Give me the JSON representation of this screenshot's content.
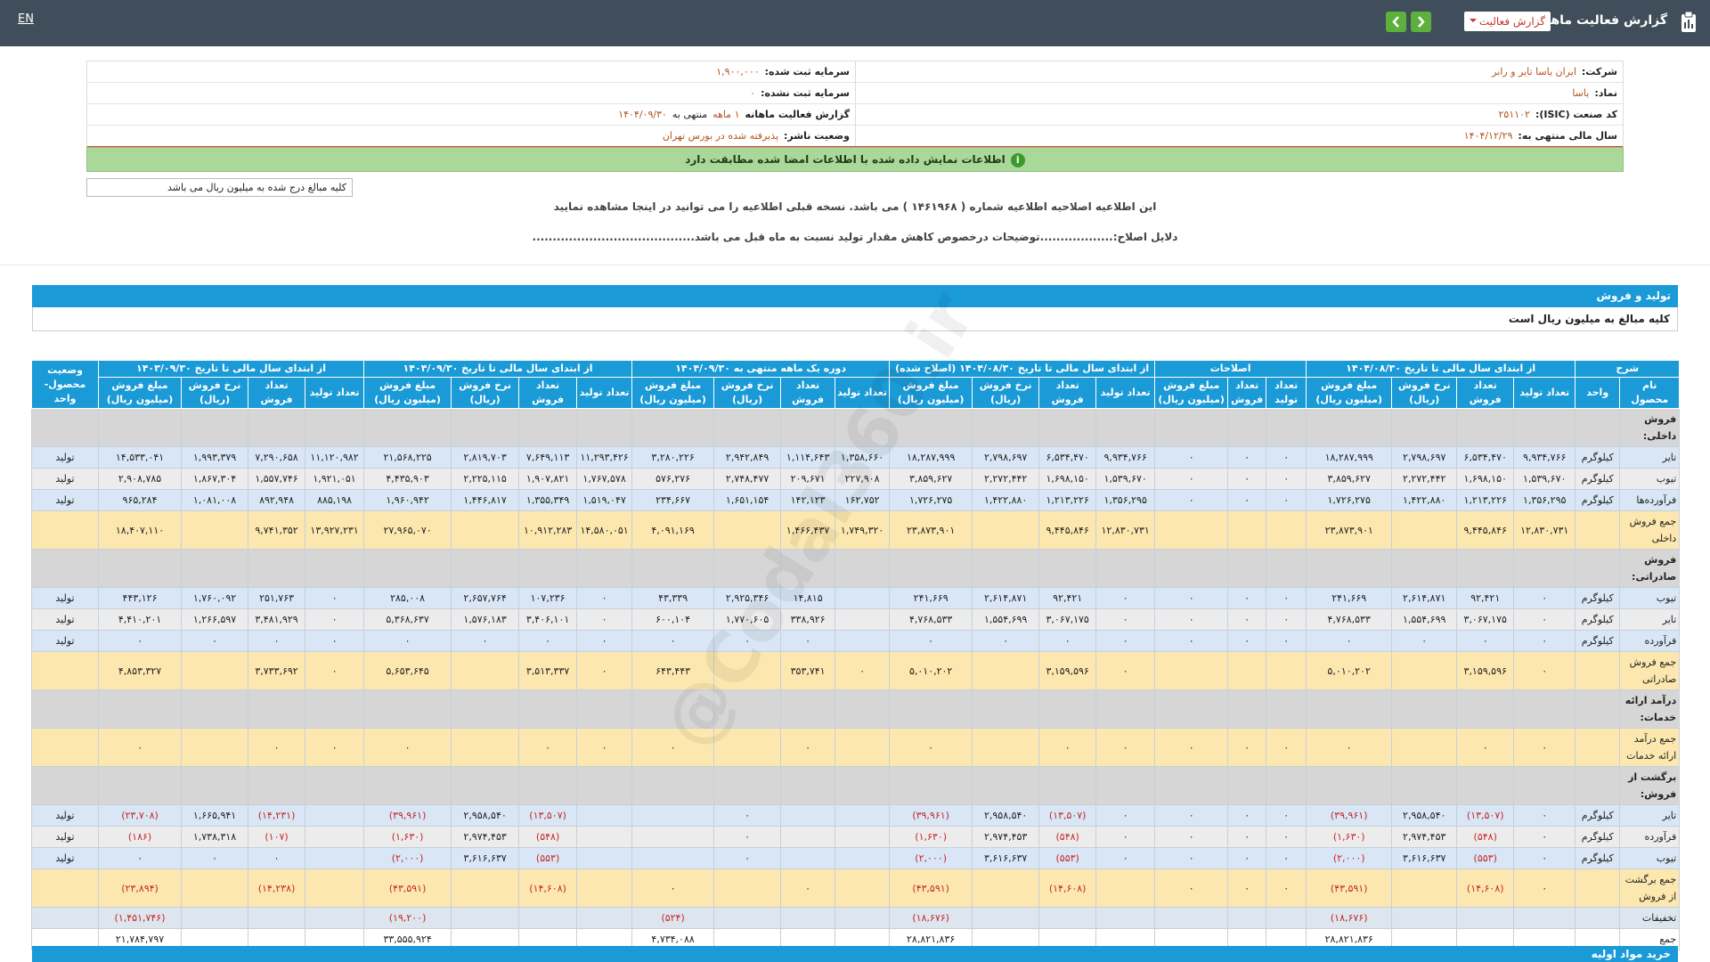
{
  "header": {
    "title": "گزارش فعالیت ماهانه",
    "dropdown": "گزارش فعالیت",
    "language": "EN"
  },
  "info": {
    "right": [
      {
        "label": "شرکت:",
        "value": "ایران یاسا تایر و رابر"
      },
      {
        "label": "نماد:",
        "value": "یاسا"
      },
      {
        "label": "کد صنعت (ISIC):",
        "value": "۲۵۱۱۰۲"
      },
      {
        "label": "سال مالی منتهی به:",
        "value": "۱۴۰۴/۱۲/۲۹"
      }
    ],
    "left": [
      {
        "label": "سرمایه ثبت شده:",
        "value": "۱,۹۰۰,۰۰۰"
      },
      {
        "label": "سرمایه ثبت نشده:",
        "value": "۰"
      },
      {
        "label": "گزارش فعالیت ماهانه",
        "value": [
          "۱ ماهه",
          "منتهی به",
          "۱۴۰۴/۰۹/۳۰"
        ]
      },
      {
        "label": "وضعیت ناشر:",
        "value": "پذیرفته شده در بورس تهران"
      }
    ]
  },
  "verification": "اطلاعات نمایش داده شده با اطلاعات امضا شده مطابقت دارد",
  "amounts_note": "کلیه مبالغ درج شده به میلیون ریال می باشد",
  "notice": "این اطلاعیه اصلاحیه اطلاعیه شماره ( ۱۴۶۱۹۶۸ ) می باشد. نسخه قبلی اطلاعیه را می توانید در اینجا مشاهده نمایید",
  "correction_reason": "دلایل اصلاح:..................توضیحات درخصوص کاهش مقدار تولید نسبت به ماه قبل می باشد........................................",
  "section": {
    "title": "تولید و فروش",
    "note": "کلیه مبالغ به میلیون ریال است"
  },
  "table": {
    "groups": [
      {
        "title": "شرح",
        "columns": [
          "نام محصول",
          "واحد"
        ]
      },
      {
        "title": "از ابتدای سال مالی تا تاریخ ۱۴۰۴/۰۸/۳۰",
        "columns": [
          "تعداد تولید",
          "تعداد فروش",
          "نرخ فروش (ریال)",
          "مبلغ فروش (میلیون ریال)"
        ]
      },
      {
        "title": "اصلاحات",
        "columns": [
          "تعداد تولید",
          "تعداد فروش",
          "مبلغ فروش (میلیون ریال)"
        ]
      },
      {
        "title": "از ابتدای سال مالی تا تاریخ ۱۴۰۴/۰۸/۳۰ (اصلاح شده)",
        "columns": [
          "تعداد تولید",
          "تعداد فروش",
          "نرخ فروش (ریال)",
          "مبلغ فروش (میلیون ریال)"
        ]
      },
      {
        "title": "دوره یک ماهه منتهی به ۱۴۰۴/۰۹/۳۰",
        "columns": [
          "تعداد تولید",
          "تعداد فروش",
          "نرخ فروش (ریال)",
          "مبلغ فروش (میلیون ریال)"
        ]
      },
      {
        "title": "از ابتدای سال مالی تا تاریخ ۱۴۰۴/۰۹/۳۰",
        "columns": [
          "تعداد تولید",
          "تعداد فروش",
          "نرخ فروش (ریال)",
          "مبلغ فروش (میلیون ریال)"
        ]
      },
      {
        "title": "از ابتدای سال مالی تا تاریخ ۱۴۰۳/۰۹/۳۰",
        "columns": [
          "تعداد تولید",
          "تعداد فروش",
          "نرخ فروش (ریال)",
          "مبلغ فروش (میلیون ریال)"
        ]
      },
      {
        "title": "وضعیت محصول-واحد",
        "columns": []
      }
    ],
    "rows": [
      {
        "color": "#d6d6d6",
        "cells": [
          "فروش داخلی:",
          null,
          null,
          null,
          null,
          null,
          null,
          null,
          null,
          null,
          null,
          null,
          null,
          null,
          null,
          null,
          null,
          null,
          null,
          null,
          null,
          null,
          null,
          null,
          null,
          null
        ]
      },
      {
        "color": "#d8e6f5",
        "cells": [
          "تایر",
          "کیلوگرم",
          "۹,۹۳۴,۷۶۶",
          "۶,۵۳۴,۴۷۰",
          "۲,۷۹۸,۶۹۷",
          "۱۸,۲۸۷,۹۹۹",
          "۰",
          "۰",
          "۰",
          "۹,۹۳۴,۷۶۶",
          "۶,۵۳۴,۴۷۰",
          "۲,۷۹۸,۶۹۷",
          "۱۸,۲۸۷,۹۹۹",
          "۱,۳۵۸,۶۶۰",
          "۱,۱۱۴,۶۴۳",
          "۲,۹۴۲,۸۴۹",
          "۳,۲۸۰,۲۲۶",
          "۱۱,۲۹۳,۴۲۶",
          "۷,۶۴۹,۱۱۳",
          "۲,۸۱۹,۷۰۳",
          "۲۱,۵۶۸,۲۲۵",
          "۱۱,۱۲۰,۹۸۲",
          "۷,۲۹۰,۶۵۸",
          "۱,۹۹۳,۳۷۹",
          "۱۴,۵۳۳,۰۴۱",
          "تولید"
        ]
      },
      {
        "color": "#ececec",
        "cells": [
          "تیوب",
          "کیلوگرم",
          "۱,۵۳۹,۶۷۰",
          "۱,۶۹۸,۱۵۰",
          "۲,۲۷۲,۴۴۲",
          "۳,۸۵۹,۶۲۷",
          "۰",
          "۰",
          "۰",
          "۱,۵۳۹,۶۷۰",
          "۱,۶۹۸,۱۵۰",
          "۲,۲۷۲,۴۴۲",
          "۳,۸۵۹,۶۲۷",
          "۲۲۷,۹۰۸",
          "۲۰۹,۶۷۱",
          "۲,۷۴۸,۴۷۷",
          "۵۷۶,۲۷۶",
          "۱,۷۶۷,۵۷۸",
          "۱,۹۰۷,۸۲۱",
          "۲,۲۲۵,۱۱۵",
          "۴,۴۳۵,۹۰۳",
          "۱,۹۲۱,۰۵۱",
          "۱,۵۵۷,۷۴۶",
          "۱,۸۶۷,۳۰۴",
          "۲,۹۰۸,۷۸۵",
          "تولید"
        ]
      },
      {
        "color": "#d8e6f5",
        "cells": [
          "فرآورده‌ها",
          "کیلوگرم",
          "۱,۳۵۶,۲۹۵",
          "۱,۲۱۳,۲۲۶",
          "۱,۴۲۲,۸۸۰",
          "۱,۷۲۶,۲۷۵",
          "۰",
          "۰",
          "۰",
          "۱,۳۵۶,۲۹۵",
          "۱,۲۱۳,۲۲۶",
          "۱,۴۲۲,۸۸۰",
          "۱,۷۲۶,۲۷۵",
          "۱۶۲,۷۵۲",
          "۱۴۲,۱۲۳",
          "۱,۶۵۱,۱۵۴",
          "۲۳۴,۶۶۷",
          "۱,۵۱۹,۰۴۷",
          "۱,۳۵۵,۳۴۹",
          "۱,۴۴۶,۸۱۷",
          "۱,۹۶۰,۹۴۲",
          "۸۸۵,۱۹۸",
          "۸۹۲,۹۴۸",
          "۱,۰۸۱,۰۰۸",
          "۹۶۵,۲۸۴",
          "تولید"
        ]
      },
      {
        "color": "#fce7ae",
        "cells": [
          "جمع فروش داخلی",
          null,
          "۱۲,۸۳۰,۷۳۱",
          "۹,۴۴۵,۸۴۶",
          null,
          "۲۳,۸۷۳,۹۰۱",
          null,
          null,
          null,
          "۱۲,۸۳۰,۷۳۱",
          "۹,۴۴۵,۸۴۶",
          null,
          "۲۳,۸۷۳,۹۰۱",
          "۱,۷۴۹,۳۲۰",
          "۱,۴۶۶,۴۳۷",
          null,
          "۴,۰۹۱,۱۶۹",
          "۱۴,۵۸۰,۰۵۱",
          "۱۰,۹۱۲,۲۸۳",
          null,
          "۲۷,۹۶۵,۰۷۰",
          "۱۳,۹۲۷,۲۳۱",
          "۹,۷۴۱,۳۵۲",
          null,
          "۱۸,۴۰۷,۱۱۰",
          null
        ]
      },
      {
        "color": "#d6d6d6",
        "cells": [
          "فروش صادراتی:",
          null,
          null,
          null,
          null,
          null,
          null,
          null,
          null,
          null,
          null,
          null,
          null,
          null,
          null,
          null,
          null,
          null,
          null,
          null,
          null,
          null,
          null,
          null,
          null,
          null
        ]
      },
      {
        "color": "#d8e6f5",
        "cells": [
          "تیوب",
          "کیلوگرم",
          "۰",
          "۹۲,۴۲۱",
          "۲,۶۱۴,۸۷۱",
          "۲۴۱,۶۶۹",
          "۰",
          "۰",
          "۰",
          "۰",
          "۹۲,۴۲۱",
          "۲,۶۱۴,۸۷۱",
          "۲۴۱,۶۶۹",
          null,
          "۱۴,۸۱۵",
          "۲,۹۲۵,۳۴۶",
          "۴۳,۳۳۹",
          "۰",
          "۱۰۷,۲۳۶",
          "۲,۶۵۷,۷۶۴",
          "۲۸۵,۰۰۸",
          "۰",
          "۲۵۱,۷۶۳",
          "۱,۷۶۰,۰۹۲",
          "۴۴۳,۱۲۶",
          "تولید"
        ]
      },
      {
        "color": "#ececec",
        "cells": [
          "تایر",
          "کیلوگرم",
          "۰",
          "۳,۰۶۷,۱۷۵",
          "۱,۵۵۴,۶۹۹",
          "۴,۷۶۸,۵۳۳",
          "۰",
          "۰",
          "۰",
          "۰",
          "۳,۰۶۷,۱۷۵",
          "۱,۵۵۴,۶۹۹",
          "۴,۷۶۸,۵۳۳",
          null,
          "۳۳۸,۹۲۶",
          "۱,۷۷۰,۶۰۵",
          "۶۰۰,۱۰۴",
          "۰",
          "۳,۴۰۶,۱۰۱",
          "۱,۵۷۶,۱۸۳",
          "۵,۳۶۸,۶۳۷",
          "۰",
          "۳,۴۸۱,۹۲۹",
          "۱,۲۶۶,۵۹۷",
          "۴,۴۱۰,۲۰۱",
          "تولید"
        ]
      },
      {
        "color": "#d8e6f5",
        "cells": [
          "فرآورده",
          "کیلوگرم",
          "۰",
          "۰",
          "۰",
          "۰",
          "۰",
          "۰",
          "۰",
          "۰",
          "۰",
          "۰",
          "۰",
          null,
          "۰",
          "۰",
          "۰",
          "۰",
          "۰",
          "۰",
          "۰",
          "۰",
          "۰",
          "۰",
          "۰",
          "تولید"
        ]
      },
      {
        "color": "#fce7ae",
        "cells": [
          "جمع فروش صادراتی",
          null,
          "۰",
          "۳,۱۵۹,۵۹۶",
          null,
          "۵,۰۱۰,۲۰۲",
          null,
          null,
          null,
          "۰",
          "۳,۱۵۹,۵۹۶",
          null,
          "۵,۰۱۰,۲۰۲",
          "۰",
          "۳۵۳,۷۴۱",
          null,
          "۶۴۳,۴۴۳",
          "۰",
          "۳,۵۱۳,۳۳۷",
          null,
          "۵,۶۵۳,۶۴۵",
          "۰",
          "۳,۷۳۳,۶۹۲",
          null,
          "۴,۸۵۳,۳۲۷",
          null
        ]
      },
      {
        "color": "#d6d6d6",
        "cells": [
          "درآمد ارائه خدمات:",
          null,
          null,
          null,
          null,
          null,
          null,
          null,
          null,
          null,
          null,
          null,
          null,
          null,
          null,
          null,
          null,
          null,
          null,
          null,
          null,
          null,
          null,
          null,
          null,
          null
        ]
      },
      {
        "color": "#fce7ae",
        "cells": [
          "جمع درآمد ارائه خدمات",
          null,
          "۰",
          "۰",
          null,
          "۰",
          "۰",
          "۰",
          "۰",
          "۰",
          "۰",
          null,
          "۰",
          null,
          "۰",
          null,
          "۰",
          "۰",
          "۰",
          null,
          "۰",
          "۰",
          "۰",
          null,
          "۰",
          null
        ]
      },
      {
        "color": "#d6d6d6",
        "cells": [
          "برگشت از فروش:",
          null,
          null,
          null,
          null,
          null,
          null,
          null,
          null,
          null,
          null,
          null,
          null,
          null,
          null,
          null,
          null,
          null,
          null,
          null,
          null,
          null,
          null,
          null,
          null,
          null
        ]
      },
      {
        "color": "#d8e6f5",
        "cells": [
          "تایر",
          "کیلوگرم",
          "۰",
          "(۱۳,۵۰۷)",
          "۲,۹۵۸,۵۴۰",
          "(۳۹,۹۶۱)",
          "۰",
          "۰",
          "۰",
          "۰",
          "(۱۳,۵۰۷)",
          "۲,۹۵۸,۵۴۰",
          "(۳۹,۹۶۱)",
          null,
          null,
          "۰",
          null,
          null,
          "(۱۳,۵۰۷)",
          "۲,۹۵۸,۵۴۰",
          "(۳۹,۹۶۱)",
          null,
          "(۱۴,۲۳۱)",
          "۱,۶۶۵,۹۴۱",
          "(۲۳,۷۰۸)",
          "تولید"
        ]
      },
      {
        "color": "#ececec",
        "cells": [
          "فرآورده",
          "کیلوگرم",
          "۰",
          "(۵۴۸)",
          "۲,۹۷۴,۴۵۳",
          "(۱,۶۳۰)",
          "۰",
          "۰",
          "۰",
          "۰",
          "(۵۴۸)",
          "۲,۹۷۴,۴۵۳",
          "(۱,۶۳۰)",
          null,
          null,
          "۰",
          null,
          null,
          "(۵۴۸)",
          "۲,۹۷۴,۴۵۳",
          "(۱,۶۳۰)",
          null,
          "(۱۰۷)",
          "۱,۷۳۸,۳۱۸",
          "(۱۸۶)",
          "تولید"
        ]
      },
      {
        "color": "#d8e6f5",
        "cells": [
          "تیوب",
          "کیلوگرم",
          "۰",
          "(۵۵۳)",
          "۳,۶۱۶,۶۳۷",
          "(۲,۰۰۰)",
          "۰",
          "۰",
          "۰",
          "۰",
          "(۵۵۳)",
          "۳,۶۱۶,۶۳۷",
          "(۲,۰۰۰)",
          null,
          null,
          "۰",
          null,
          null,
          "(۵۵۳)",
          "۳,۶۱۶,۶۳۷",
          "(۲,۰۰۰)",
          null,
          "۰",
          "۰",
          "۰",
          "تولید"
        ]
      },
      {
        "color": "#fce7ae",
        "cells": [
          "جمع برگشت از فروش",
          null,
          "۰",
          "(۱۴,۶۰۸)",
          null,
          "(۴۳,۵۹۱)",
          "۰",
          "۰",
          "۰",
          null,
          "(۱۴,۶۰۸)",
          null,
          "(۴۳,۵۹۱)",
          null,
          "۰",
          null,
          "۰",
          null,
          "(۱۴,۶۰۸)",
          null,
          "(۴۳,۵۹۱)",
          null,
          "(۱۴,۲۳۸)",
          null,
          "(۲۳,۸۹۴)",
          null
        ]
      },
      {
        "color": "#dde5ee",
        "cells": [
          "تخفیفات",
          null,
          null,
          null,
          null,
          "(۱۸,۶۷۶)",
          null,
          null,
          null,
          null,
          null,
          null,
          "(۱۸,۶۷۶)",
          null,
          null,
          null,
          "(۵۲۴)",
          null,
          null,
          null,
          "(۱۹,۲۰۰)",
          null,
          null,
          null,
          "(۱,۴۵۱,۷۴۶)",
          null
        ]
      },
      {
        "color": "#ffffff",
        "cells": [
          "جمع",
          null,
          null,
          null,
          null,
          "۲۸,۸۲۱,۸۳۶",
          null,
          null,
          null,
          null,
          null,
          null,
          "۲۸,۸۲۱,۸۳۶",
          null,
          null,
          null,
          "۴,۷۳۴,۰۸۸",
          null,
          null,
          null,
          "۳۳,۵۵۵,۹۲۴",
          null,
          null,
          null,
          "۲۱,۷۸۴,۷۹۷",
          null
        ]
      }
    ]
  },
  "next_section": "خرید مواد اولیه",
  "watermark": "@Codal360.ir"
}
